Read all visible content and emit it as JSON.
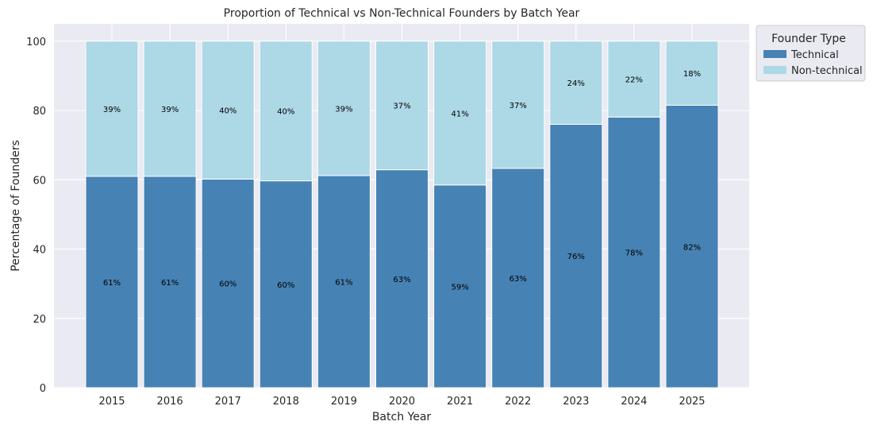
{
  "chart_data": {
    "type": "bar",
    "stacked": true,
    "title": "Proportion of Technical vs Non-Technical Founders by Batch Year",
    "xlabel": "Batch Year",
    "ylabel": "Percentage of Founders",
    "ylim": [
      0,
      105
    ],
    "yticks": [
      "0",
      "20",
      "40",
      "60",
      "80",
      "100"
    ],
    "grid": true,
    "categories": [
      "2015",
      "2016",
      "2017",
      "2018",
      "2019",
      "2020",
      "2021",
      "2022",
      "2023",
      "2024",
      "2025"
    ],
    "series": [
      {
        "name": "Technical",
        "color": "#4682b4",
        "values": [
          61,
          61,
          60.2,
          59.7,
          61.2,
          62.9,
          58.5,
          63.3,
          76,
          78.1,
          81.5
        ],
        "labels": [
          "61%",
          "61%",
          "60%",
          "60%",
          "61%",
          "63%",
          "59%",
          "63%",
          "76%",
          "78%",
          "82%"
        ]
      },
      {
        "name": "Non-technical",
        "color": "#add8e6",
        "values": [
          39,
          39,
          39.8,
          40.3,
          38.8,
          37.1,
          41.5,
          36.7,
          24,
          21.9,
          18.5
        ],
        "labels": [
          "39%",
          "39%",
          "40%",
          "40%",
          "39%",
          "37%",
          "41%",
          "37%",
          "24%",
          "22%",
          "18%"
        ]
      }
    ],
    "legend": {
      "title": "Founder Type",
      "position": "outside-right-top"
    }
  }
}
